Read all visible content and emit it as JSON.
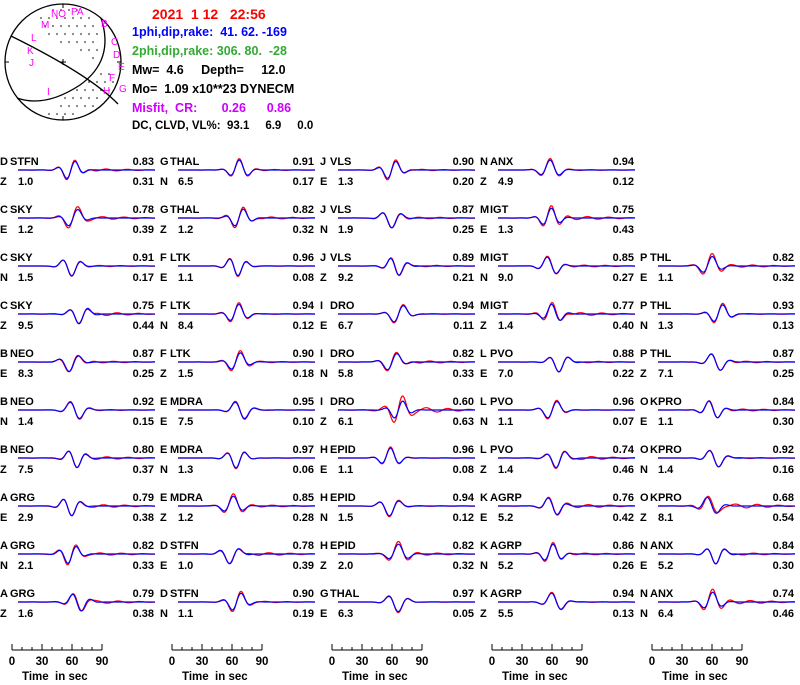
{
  "header": {
    "datetime": "2021  1 12   22:56",
    "plane1": "1phi,dip,rake:  41. 62. -169",
    "plane2": "2phi,dip,rake: 306. 80.  -28",
    "mw_depth": "Mw=  4.6     Depth=     12.0",
    "mo": "Mo=  1.09 x10**23 DYNECM",
    "misfit": "Misfit,  CR:       0.26      0.86",
    "dc_clvd": "DC, CLVD, VL%:  93.1     6.9     0.0"
  },
  "colors": {
    "datetime": "#ff0000",
    "plane1": "#0000ff",
    "plane2": "#33aa33",
    "misfit": "#cc00ff",
    "stations": "#ff00ff",
    "observed": "#ff0000",
    "synthetic": "#0000ff"
  },
  "beachball": {
    "stations": [
      "NO",
      "PA",
      "B",
      "C",
      "D",
      "E",
      "F",
      "G",
      "H",
      "M",
      "L",
      "K",
      "J",
      "I"
    ]
  },
  "columns": [
    {
      "rows": [
        {
          "code": "D",
          "station": "STFN",
          "comp": "Z",
          "dist": "1.0",
          "cc": "0.83",
          "misfit": "0.31"
        },
        {
          "code": "C",
          "station": "SKY",
          "comp": "E",
          "dist": "1.2",
          "cc": "0.78",
          "misfit": "0.39"
        },
        {
          "code": "C",
          "station": "SKY",
          "comp": "N",
          "dist": "1.5",
          "cc": "0.91",
          "misfit": "0.17"
        },
        {
          "code": "C",
          "station": "SKY",
          "comp": "Z",
          "dist": "9.5",
          "cc": "0.75",
          "misfit": "0.44"
        },
        {
          "code": "B",
          "station": "NEO",
          "comp": "E",
          "dist": "8.3",
          "cc": "0.87",
          "misfit": "0.25"
        },
        {
          "code": "B",
          "station": "NEO",
          "comp": "N",
          "dist": "1.4",
          "cc": "0.92",
          "misfit": "0.15"
        },
        {
          "code": "B",
          "station": "NEO",
          "comp": "Z",
          "dist": "7.5",
          "cc": "0.80",
          "misfit": "0.37"
        },
        {
          "code": "A",
          "station": "GRG",
          "comp": "E",
          "dist": "2.9",
          "cc": "0.79",
          "misfit": "0.38"
        },
        {
          "code": "A",
          "station": "GRG",
          "comp": "N",
          "dist": "2.1",
          "cc": "0.82",
          "misfit": "0.33"
        },
        {
          "code": "A",
          "station": "GRG",
          "comp": "Z",
          "dist": "1.6",
          "cc": "0.79",
          "misfit": "0.38"
        }
      ]
    },
    {
      "rows": [
        {
          "code": "G",
          "station": "THAL",
          "comp": "N",
          "dist": "6.5",
          "cc": "0.91",
          "misfit": "0.17"
        },
        {
          "code": "G",
          "station": "THAL",
          "comp": "Z",
          "dist": "1.2",
          "cc": "0.82",
          "misfit": "0.32"
        },
        {
          "code": "F",
          "station": "LTK",
          "comp": "E",
          "dist": "1.1",
          "cc": "0.96",
          "misfit": "0.08"
        },
        {
          "code": "F",
          "station": "LTK",
          "comp": "N",
          "dist": "8.4",
          "cc": "0.94",
          "misfit": "0.12"
        },
        {
          "code": "F",
          "station": "LTK",
          "comp": "Z",
          "dist": "1.5",
          "cc": "0.90",
          "misfit": "0.18"
        },
        {
          "code": "E",
          "station": "MDRA",
          "comp": "E",
          "dist": "7.5",
          "cc": "0.95",
          "misfit": "0.10"
        },
        {
          "code": "E",
          "station": "MDRA",
          "comp": "N",
          "dist": "1.3",
          "cc": "0.97",
          "misfit": "0.06"
        },
        {
          "code": "E",
          "station": "MDRA",
          "comp": "Z",
          "dist": "1.2",
          "cc": "0.85",
          "misfit": "0.28"
        },
        {
          "code": "D",
          "station": "STFN",
          "comp": "E",
          "dist": "1.0",
          "cc": "0.78",
          "misfit": "0.39"
        },
        {
          "code": "D",
          "station": "STFN",
          "comp": "N",
          "dist": "1.1",
          "cc": "0.90",
          "misfit": "0.19"
        }
      ]
    },
    {
      "rows": [
        {
          "code": "J",
          "station": "VLS",
          "comp": "E",
          "dist": "1.3",
          "cc": "0.90",
          "misfit": "0.20"
        },
        {
          "code": "J",
          "station": "VLS",
          "comp": "N",
          "dist": "1.9",
          "cc": "0.87",
          "misfit": "0.25"
        },
        {
          "code": "J",
          "station": "VLS",
          "comp": "Z",
          "dist": "9.2",
          "cc": "0.89",
          "misfit": "0.21"
        },
        {
          "code": "I",
          "station": "DRO",
          "comp": "E",
          "dist": "6.7",
          "cc": "0.94",
          "misfit": "0.11"
        },
        {
          "code": "I",
          "station": "DRO",
          "comp": "N",
          "dist": "5.8",
          "cc": "0.82",
          "misfit": "0.33"
        },
        {
          "code": "I",
          "station": "DRO",
          "comp": "Z",
          "dist": "6.1",
          "cc": "0.60",
          "misfit": "0.63"
        },
        {
          "code": "H",
          "station": "EPID",
          "comp": "E",
          "dist": "1.1",
          "cc": "0.96",
          "misfit": "0.08"
        },
        {
          "code": "H",
          "station": "EPID",
          "comp": "N",
          "dist": "1.5",
          "cc": "0.94",
          "misfit": "0.12"
        },
        {
          "code": "H",
          "station": "EPID",
          "comp": "Z",
          "dist": "2.0",
          "cc": "0.82",
          "misfit": "0.32"
        },
        {
          "code": "G",
          "station": "THAL",
          "comp": "E",
          "dist": "6.3",
          "cc": "0.97",
          "misfit": "0.05"
        }
      ]
    },
    {
      "rows": [
        {
          "code": "N",
          "station": "ANX",
          "comp": "Z",
          "dist": "4.9",
          "cc": "0.94",
          "misfit": "0.12"
        },
        {
          "code": "M",
          "station": "IGT",
          "comp": "E",
          "dist": "1.3",
          "cc": "0.75",
          "misfit": "0.43"
        },
        {
          "code": "M",
          "station": "IGT",
          "comp": "N",
          "dist": "9.0",
          "cc": "0.85",
          "misfit": "0.27"
        },
        {
          "code": "M",
          "station": "IGT",
          "comp": "Z",
          "dist": "1.4",
          "cc": "0.77",
          "misfit": "0.40"
        },
        {
          "code": "L",
          "station": "PVO",
          "comp": "E",
          "dist": "7.0",
          "cc": "0.88",
          "misfit": "0.22"
        },
        {
          "code": "L",
          "station": "PVO",
          "comp": "N",
          "dist": "1.1",
          "cc": "0.96",
          "misfit": "0.07"
        },
        {
          "code": "L",
          "station": "PVO",
          "comp": "Z",
          "dist": "1.4",
          "cc": "0.74",
          "misfit": "0.46"
        },
        {
          "code": "K",
          "station": "AGRP",
          "comp": "E",
          "dist": "5.2",
          "cc": "0.76",
          "misfit": "0.42"
        },
        {
          "code": "K",
          "station": "AGRP",
          "comp": "N",
          "dist": "5.2",
          "cc": "0.86",
          "misfit": "0.26"
        },
        {
          "code": "K",
          "station": "AGRP",
          "comp": "Z",
          "dist": "5.5",
          "cc": "0.94",
          "misfit": "0.13"
        }
      ]
    },
    {
      "rows": [
        null,
        null,
        {
          "code": "P",
          "station": "THL",
          "comp": "E",
          "dist": "1.1",
          "cc": "0.82",
          "misfit": "0.32"
        },
        {
          "code": "P",
          "station": "THL",
          "comp": "N",
          "dist": "1.3",
          "cc": "0.93",
          "misfit": "0.13"
        },
        {
          "code": "P",
          "station": "THL",
          "comp": "Z",
          "dist": "7.1",
          "cc": "0.87",
          "misfit": "0.25"
        },
        {
          "code": "O",
          "station": "KPRO",
          "comp": "E",
          "dist": "1.1",
          "cc": "0.84",
          "misfit": "0.30"
        },
        {
          "code": "O",
          "station": "KPRO",
          "comp": "N",
          "dist": "1.4",
          "cc": "0.92",
          "misfit": "0.16"
        },
        {
          "code": "O",
          "station": "KPRO",
          "comp": "Z",
          "dist": "8.1",
          "cc": "0.68",
          "misfit": "0.54"
        },
        {
          "code": "N",
          "station": "ANX",
          "comp": "E",
          "dist": "5.2",
          "cc": "0.84",
          "misfit": "0.30"
        },
        {
          "code": "N",
          "station": "ANX",
          "comp": "N",
          "dist": "6.4",
          "cc": "0.74",
          "misfit": "0.46"
        }
      ]
    }
  ],
  "axis": {
    "ticks": [
      "0",
      "30",
      "60",
      "90"
    ],
    "label": "Time  in sec",
    "range": [
      0,
      90
    ]
  },
  "chart_data": {
    "type": "line",
    "title": "2021  1 12   22:56",
    "xlabel": "Time  in sec",
    "xlim": [
      0,
      90
    ],
    "series": [
      {
        "name": "observed",
        "color": "#ff0000"
      },
      {
        "name": "synthetic",
        "color": "#0000ff"
      }
    ]
  }
}
